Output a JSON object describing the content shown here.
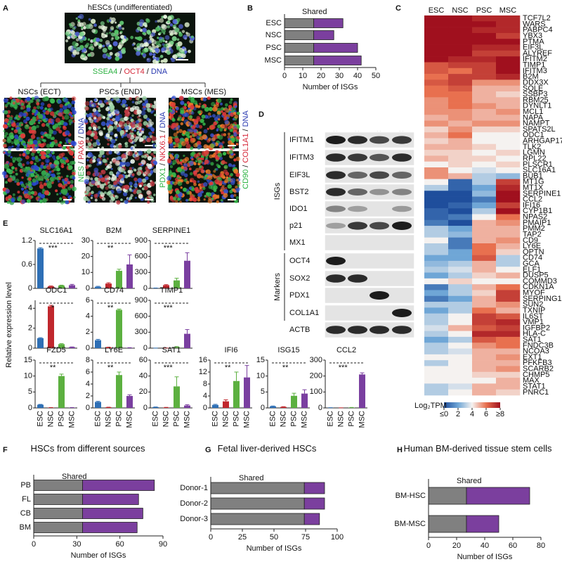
{
  "groups": [
    "ESC",
    "NSC",
    "PSC",
    "MSC"
  ],
  "header_colors": [
    "#29a9d8",
    "#c8364a",
    "#a8c43a",
    "#9b59b6"
  ],
  "bar_colors": [
    "#2e6fb5",
    "#c0272d",
    "#5cb040",
    "#7a3fa0"
  ],
  "panel_a": {
    "label": "A",
    "separator": "/",
    "top": {
      "title": "hESCs (undifferentiated)",
      "stains": [
        {
          "text": "SSEA4",
          "color": "#2fb344"
        },
        {
          "text": "OCT4",
          "color": "#d6293a"
        },
        {
          "text": "DNA",
          "color": "#2a3ab0"
        }
      ]
    },
    "subpanels": [
      {
        "title": "NSCs (ECT)",
        "stains": [
          {
            "text": "NES",
            "color": "#2fb344"
          },
          {
            "text": "PAX6",
            "color": "#d6293a"
          },
          {
            "text": "DNA",
            "color": "#2a3ab0"
          }
        ]
      },
      {
        "title": "PSCs (END)",
        "stains": [
          {
            "text": "PDX1",
            "color": "#2fb344"
          },
          {
            "text": "NKX6.1",
            "color": "#d6293a"
          },
          {
            "text": "DNA",
            "color": "#2a3ab0"
          }
        ]
      },
      {
        "title": "MSCs (MES)",
        "stains": [
          {
            "text": "CD90",
            "color": "#2fb344"
          },
          {
            "text": "COL1A1",
            "color": "#d6293a"
          },
          {
            "text": "DNA",
            "color": "#2a3ab0"
          }
        ]
      }
    ]
  },
  "panel_d": {
    "label": "D",
    "blocks": [
      {
        "name": "ISGs",
        "rows": [
          "IFITM1",
          "IFITM3",
          "EIF3L",
          "BST2",
          "IDO1",
          "p21",
          "MX1"
        ]
      },
      {
        "name": "Markers",
        "rows": [
          "OCT4",
          "SOX2",
          "PDX1",
          "COL1A1"
        ]
      }
    ],
    "loading": "ACTB"
  },
  "panel_e": {
    "label": "E",
    "ylabel": "Relative expression level"
  },
  "chart_data": [
    {
      "type": "stacked_barh",
      "panel": "B",
      "categories": [
        "ESC",
        "NSC",
        "PSC",
        "MSC"
      ],
      "series": [
        {
          "name": "Shared",
          "color": "#808080",
          "values": [
            16,
            16,
            16,
            16
          ]
        },
        {
          "color": "#7b3f9e",
          "values": [
            16,
            11,
            24,
            26
          ]
        }
      ],
      "xlim": [
        0,
        50
      ],
      "xticks": [
        0,
        10,
        20,
        30,
        40,
        50
      ],
      "xlabel": "Number of ISGs"
    },
    {
      "type": "heatmap",
      "panel": "C",
      "rows": [
        "TCF7L2",
        "WARS",
        "PABPC4",
        "YBX3",
        "PTMA",
        "EIF3L",
        "ALYREF",
        "IFITM2",
        "TIMP1",
        "IFITM3",
        "B2M",
        "DDX3X",
        "SQLE",
        "SSBP3",
        "RBM25",
        "DYNLT1",
        "MCL1",
        "NAPA",
        "NAMPT",
        "SPATS2L",
        "ODC1",
        "ARHGAP17",
        "TLK2",
        "LGMN",
        "RPL22",
        "PLSCR1",
        "SLC16A1",
        "BUB1",
        "MT1G",
        "MT1X",
        "SERPINE1",
        "CCL2",
        "IFI16",
        "CYP1B1",
        "NPAS2",
        "PMAIP1",
        "PMM2",
        "TAP2",
        "CD9",
        "LY6E",
        "OPTN",
        "CD74",
        "GCA",
        "ELF1",
        "DUSP5",
        "COMMD3",
        "CDKN1A",
        "MYOF",
        "SERPING1",
        "SUN2",
        "TXNIP",
        "IL6ST",
        "VMP1",
        "IGFBP2",
        "HLA-C",
        "SAT1",
        "FNDC3B",
        "NCOA3",
        "EXT1",
        "PFKFB3",
        "SCARB2",
        "CHMP5",
        "MAX",
        "STAT1",
        "PNRC1"
      ],
      "values": [
        [
          8,
          8,
          7.5,
          7.5
        ],
        [
          8,
          8,
          8,
          7.5
        ],
        [
          8,
          8,
          7.5,
          7.5
        ],
        [
          8,
          8,
          8,
          7
        ],
        [
          8,
          8,
          8,
          8
        ],
        [
          8,
          8,
          7.5,
          7.5
        ],
        [
          8,
          8,
          7,
          7
        ],
        [
          8,
          7.5,
          7.5,
          8
        ],
        [
          6.5,
          7,
          7,
          8
        ],
        [
          6.5,
          6,
          7,
          8
        ],
        [
          6,
          7,
          7,
          7.5
        ],
        [
          6.5,
          7,
          5.5,
          5.5
        ],
        [
          6,
          6.5,
          5,
          5
        ],
        [
          6,
          6,
          5,
          4.5
        ],
        [
          5.5,
          6,
          5,
          5
        ],
        [
          5.5,
          6,
          5.5,
          5
        ],
        [
          5.5,
          5.5,
          5,
          5.5
        ],
        [
          5,
          5.5,
          5,
          5
        ],
        [
          5.5,
          5,
          5.5,
          5.5
        ],
        [
          4.5,
          5.5,
          4.5,
          4.5
        ],
        [
          5,
          6,
          4,
          4
        ],
        [
          4.5,
          5,
          4,
          4
        ],
        [
          5,
          5,
          4.5,
          4
        ],
        [
          4.5,
          4.5,
          4,
          4.5
        ],
        [
          5,
          4.5,
          4.5,
          4
        ],
        [
          4,
          4.5,
          4,
          4.5
        ],
        [
          5.5,
          4,
          3.5,
          4
        ],
        [
          5.5,
          5,
          3,
          2.5
        ],
        [
          4,
          0.5,
          3,
          7
        ],
        [
          3,
          0.5,
          2,
          7.5
        ],
        [
          0,
          0,
          2.5,
          8
        ],
        [
          0,
          0,
          1,
          8
        ],
        [
          0,
          0.5,
          2,
          7
        ],
        [
          0.5,
          0,
          3,
          8
        ],
        [
          0.5,
          1,
          4,
          6
        ],
        [
          1,
          0,
          5,
          5.5
        ],
        [
          3,
          2,
          5,
          5
        ],
        [
          3,
          2.5,
          5,
          5
        ],
        [
          4,
          1,
          5,
          5.5
        ],
        [
          3,
          1,
          6,
          5
        ],
        [
          3,
          2,
          6,
          4.5
        ],
        [
          2,
          2,
          6.5,
          3
        ],
        [
          2.5,
          3,
          5,
          3
        ],
        [
          3,
          3.5,
          5,
          4
        ],
        [
          2,
          3,
          4.5,
          5
        ],
        [
          4,
          4.5,
          4,
          4
        ],
        [
          1,
          3,
          5,
          6
        ],
        [
          2,
          3,
          4.5,
          7
        ],
        [
          1,
          2,
          5,
          7
        ],
        [
          3,
          3,
          5,
          5.5
        ],
        [
          2,
          3,
          6,
          5
        ],
        [
          3,
          4,
          7,
          6.5
        ],
        [
          3,
          4,
          7,
          7.5
        ],
        [
          3.5,
          5,
          6.5,
          7
        ],
        [
          3,
          4,
          7.5,
          7.5
        ],
        [
          2,
          3,
          6.5,
          6
        ],
        [
          3,
          4,
          5.5,
          6
        ],
        [
          3,
          3.5,
          5,
          5
        ],
        [
          4,
          4,
          5,
          5.5
        ],
        [
          3,
          4,
          5,
          5
        ],
        [
          4,
          4,
          5,
          5.5
        ],
        [
          4,
          4,
          4.5,
          4.5
        ],
        [
          4,
          4,
          4,
          5
        ],
        [
          3,
          3.5,
          5,
          5
        ],
        [
          3,
          4,
          5,
          4.5
        ]
      ],
      "colorbar": {
        "title": "Log₂TPM",
        "lim": [
          0,
          8
        ],
        "ticks": [
          {
            "value": 0,
            "label": "≤0"
          },
          2,
          4,
          6,
          {
            "value": 8,
            "label": "≥8"
          }
        ]
      }
    },
    {
      "type": "bar",
      "title": "SLC16A1",
      "values": [
        1.0,
        0.05,
        0.07,
        0.08
      ],
      "errors": [
        0.02,
        0.01,
        0.01,
        0.02
      ],
      "ylim": [
        0,
        1.2
      ],
      "yticks": [
        0,
        0.6,
        1.2
      ],
      "annotation": "***"
    },
    {
      "type": "bar",
      "title": "B2M",
      "values": [
        1,
        3,
        11,
        15
      ],
      "errors": [
        0.3,
        0.5,
        1,
        6
      ],
      "ylim": [
        0,
        30
      ],
      "yticks": [
        0,
        10,
        20,
        30
      ],
      "annotation": "**"
    },
    {
      "type": "bar",
      "title": "SERPINE1",
      "values": [
        5,
        60,
        150,
        520
      ],
      "errors": [
        2,
        10,
        40,
        150
      ],
      "ylim": [
        0,
        900
      ],
      "yticks": [
        0,
        300,
        600,
        900
      ],
      "annotation": "***"
    },
    {
      "type": "bar",
      "title": "ODC1",
      "values": [
        1,
        4.2,
        0.4,
        0.1
      ],
      "errors": [
        0.05,
        0.1,
        0.05,
        0.02
      ],
      "ylim": [
        0,
        4.8
      ],
      "yticks": [
        0,
        2,
        4
      ],
      "annotation": "*"
    },
    {
      "type": "bar",
      "title": "CD74",
      "values": [
        1,
        0.1,
        4.8,
        0.05
      ],
      "errors": [
        0.1,
        0.02,
        0.1,
        0.01
      ],
      "ylim": [
        0,
        6
      ],
      "yticks": [
        0,
        2,
        4,
        6
      ],
      "annotation": "**"
    },
    {
      "type": "bar",
      "title": "TIMP1",
      "values": [
        1,
        2,
        20,
        270
      ],
      "errors": [
        0.5,
        0.5,
        10,
        80
      ],
      "ylim": [
        0,
        900
      ],
      "yticks": [
        0,
        300,
        600,
        900
      ],
      "annotation": "***"
    },
    {
      "type": "bar",
      "title": "FZD5",
      "values": [
        1,
        0.1,
        10,
        0.1
      ],
      "errors": [
        0.1,
        0.02,
        0.6,
        0.02
      ],
      "ylim": [
        0,
        15
      ],
      "yticks": [
        0,
        5,
        10,
        15
      ],
      "annotation": "**"
    },
    {
      "type": "bar",
      "title": "LY6E",
      "values": [
        1,
        0.1,
        5.5,
        2
      ],
      "errors": [
        0.1,
        0.02,
        0.5,
        0.2
      ],
      "ylim": [
        0,
        8
      ],
      "yticks": [
        0,
        2,
        4,
        6,
        8
      ],
      "annotation": "**"
    },
    {
      "type": "bar",
      "title": "SAT1",
      "values": [
        1,
        0.5,
        27,
        3
      ],
      "errors": [
        0.2,
        0.2,
        12,
        1
      ],
      "ylim": [
        0,
        60
      ],
      "yticks": [
        0,
        20,
        40,
        60
      ],
      "annotation": "***"
    },
    {
      "type": "bar",
      "title": "IFI6",
      "values": [
        1,
        2.2,
        9,
        10.2
      ],
      "errors": [
        0.2,
        0.5,
        3,
        4
      ],
      "ylim": [
        0,
        16
      ],
      "yticks": [
        0,
        4,
        8,
        12,
        16
      ],
      "annotation": "**"
    },
    {
      "type": "bar",
      "title": "ISG15",
      "values": [
        0.5,
        0.3,
        3.8,
        4.5
      ],
      "errors": [
        0.1,
        0.1,
        0.8,
        1.2
      ],
      "ylim": [
        0,
        15
      ],
      "yticks": [
        0,
        5,
        10,
        15
      ],
      "annotation": "**"
    },
    {
      "type": "bar",
      "title": "CCL2",
      "values": [
        1,
        0.5,
        2,
        210
      ],
      "errors": [
        0.5,
        0.2,
        1,
        10
      ],
      "ylim": [
        0,
        300
      ],
      "yticks": [
        0,
        100,
        200,
        300
      ],
      "annotation": "***"
    },
    {
      "type": "stacked_barh",
      "panel": "F",
      "title": "HSCs from different sources",
      "categories": [
        "PB",
        "FL",
        "CB",
        "BM"
      ],
      "series": [
        {
          "name": "Shared",
          "color": "#808080",
          "values": [
            34,
            34,
            34,
            34
          ]
        },
        {
          "color": "#7b3f9e",
          "values": [
            50,
            39,
            42,
            38
          ]
        }
      ],
      "xlim": [
        0,
        90
      ],
      "xticks": [
        0,
        30,
        60,
        90
      ],
      "xlabel": "Number of ISGs"
    },
    {
      "type": "stacked_barh",
      "panel": "G",
      "title": "Fetal liver-derived HSCs",
      "categories": [
        "Donor-1",
        "Donor-2",
        "Donor-3"
      ],
      "series": [
        {
          "name": "Shared",
          "color": "#808080",
          "values": [
            74,
            74,
            74
          ]
        },
        {
          "color": "#7b3f9e",
          "values": [
            16,
            16,
            12
          ]
        }
      ],
      "xlim": [
        0,
        100
      ],
      "xticks": [
        0,
        25,
        50,
        75,
        100
      ],
      "xlabel": "Number of ISGs"
    },
    {
      "type": "stacked_barh",
      "panel": "H",
      "title": "Human BM-derived tissue stem cells",
      "categories": [
        "BM-HSC",
        "BM-MSC"
      ],
      "series": [
        {
          "name": "Shared",
          "color": "#808080",
          "values": [
            27,
            27
          ]
        },
        {
          "color": "#7b3f9e",
          "values": [
            45,
            23
          ]
        }
      ],
      "xlim": [
        0,
        80
      ],
      "xticks": [
        0,
        20,
        40,
        60,
        80
      ],
      "xlabel": "Number of ISGs"
    }
  ]
}
